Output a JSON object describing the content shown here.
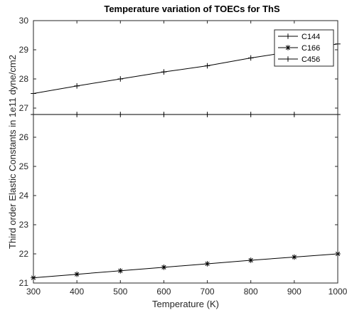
{
  "chart_data": {
    "type": "line",
    "title": "Temperature variation of TOECs for ThS",
    "xlabel": "Temperature (K)",
    "ylabel": "Third order Elastic Constants in 1e11 dyne/cm2",
    "x": [
      300,
      400,
      500,
      600,
      700,
      800,
      900,
      1000
    ],
    "xlim": [
      300,
      1000
    ],
    "ylim": [
      21,
      30
    ],
    "xticks": [
      "300",
      "400",
      "500",
      "600",
      "700",
      "800",
      "900",
      "1000"
    ],
    "yticks": [
      "21",
      "22",
      "23",
      "24",
      "25",
      "26",
      "27",
      "28",
      "29",
      "30"
    ],
    "grid": false,
    "legend_position": "top-right",
    "series": [
      {
        "name": "C144",
        "marker": "plus",
        "color": "#000000",
        "values": [
          27.5,
          27.76,
          28.0,
          28.24,
          28.45,
          28.72,
          28.95,
          29.2
        ]
      },
      {
        "name": "C166",
        "marker": "asterisk",
        "color": "#000000",
        "values": [
          21.18,
          21.3,
          21.42,
          21.54,
          21.66,
          21.78,
          21.89,
          22.0
        ]
      },
      {
        "name": "C456",
        "marker": "plus",
        "color": "#000000",
        "values": [
          26.78,
          26.78,
          26.78,
          26.78,
          26.78,
          26.78,
          26.78,
          26.78
        ]
      }
    ]
  }
}
